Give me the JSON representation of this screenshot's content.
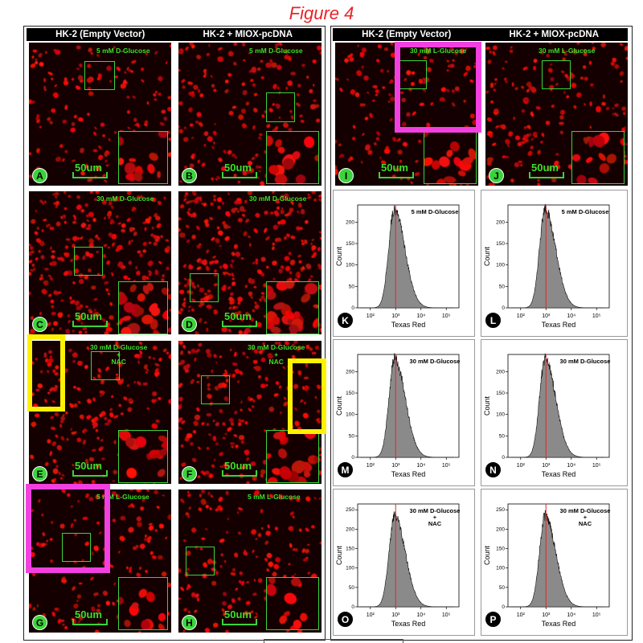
{
  "figure_title": "Figure 4",
  "left_header": {
    "col1": "HK-2 (Empty Vector)",
    "col2": "HK-2 + MIOX-pcDNA"
  },
  "right_header": {
    "col1": "HK-2 (Empty Vector)",
    "col2": "HK-2 + MIOX-pcDNA"
  },
  "scale_label": "50um",
  "micrographs": [
    {
      "letter": "A",
      "condition": "5 mM D-Glucose",
      "density": 0.55
    },
    {
      "letter": "B",
      "condition": "5 mM D-Glucose",
      "density": 0.6
    },
    {
      "letter": "C",
      "condition": "30 mM D-Glucose",
      "density": 1.0
    },
    {
      "letter": "D",
      "condition": "30 mM D-Glucose",
      "density": 1.15
    },
    {
      "letter": "E",
      "condition": "30 mM D-Glucose\n+\nNAC",
      "density": 0.75
    },
    {
      "letter": "F",
      "condition": "30 mM D-Glucose\n+\nNAC",
      "density": 0.8
    },
    {
      "letter": "G",
      "condition": "5 mM L-Glucose",
      "density": 0.5
    },
    {
      "letter": "H",
      "condition": "5 mM L-Glucose",
      "density": 0.55
    },
    {
      "letter": "I",
      "condition": "30 mM L-Glucose",
      "density": 0.6
    },
    {
      "letter": "J",
      "condition": "30 mM L-Glucose",
      "density": 0.65
    }
  ],
  "histograms": [
    {
      "letter": "K",
      "condition": "5 mM D-Glucose",
      "peak": 0.85,
      "ymax": 230
    },
    {
      "letter": "L",
      "condition": "5 mM D-Glucose",
      "peak": 1.0,
      "ymax": 230
    },
    {
      "letter": "M",
      "condition": "30 mM D-Glucose",
      "peak": 0.95,
      "ymax": 230
    },
    {
      "letter": "N",
      "condition": "30 mM D-Glucose",
      "peak": 1.0,
      "ymax": 230
    },
    {
      "letter": "O",
      "condition": "30 mM D-Glucose\n+\nNAC",
      "peak": 0.95,
      "ymax": 235
    },
    {
      "letter": "P",
      "condition": "30 mM D-Glucose\n+\nNAC",
      "peak": 1.0,
      "ymax": 235
    }
  ],
  "hist_axes": {
    "xlabel": "Texas Red",
    "ylabel": "Count",
    "xticks": [
      "10²",
      "10³",
      "10⁴",
      "10⁵"
    ],
    "yticks_a": [
      "200",
      "150",
      "100",
      "50",
      "0"
    ],
    "yticks_b": [
      "250",
      "200",
      "150",
      "100",
      "50",
      "0"
    ]
  },
  "colors": {
    "title_red": "#e8242a",
    "label_green": "#39e02a",
    "highlight_yellow": "#fff200",
    "highlight_magenta": "#f23fe0",
    "cell_red": "#ff1a1a"
  }
}
